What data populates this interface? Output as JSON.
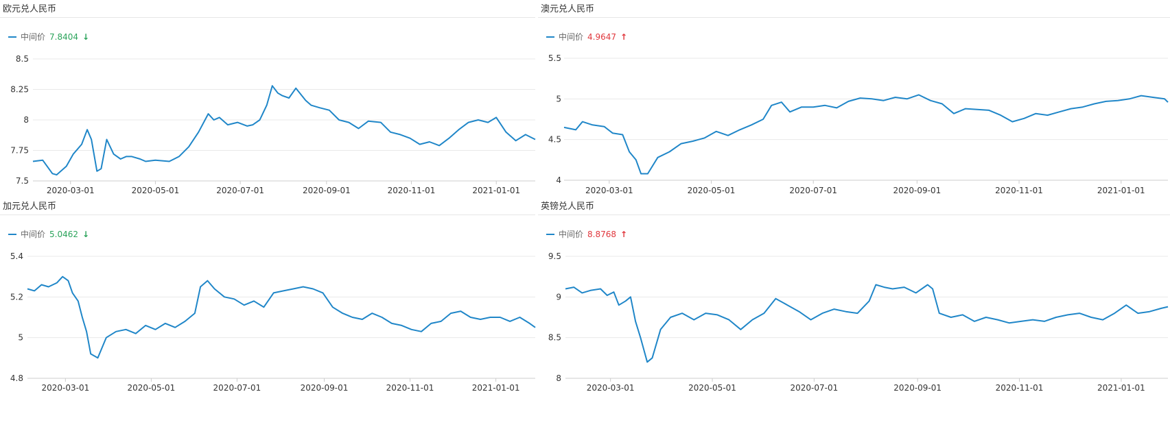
{
  "panels": [
    {
      "title": "欧元兑人民币",
      "legend": {
        "label": "中间价",
        "value": "7.8404",
        "trend": "down"
      },
      "chart_data": {
        "type": "line",
        "title": "欧元兑人民币",
        "series": [
          {
            "name": "中间价",
            "color": "#1f86c8"
          }
        ],
        "ylim": [
          7.5,
          8.5
        ],
        "yticks": [
          "7.5",
          "7.75",
          "8",
          "8.25",
          "8.5"
        ],
        "xticks": [
          "2020-03-01",
          "2020-05-01",
          "2020-07-01",
          "2020-09-01",
          "2020-11-01",
          "2021-01-01"
        ],
        "xrange": [
          "2020-02-03",
          "2021-01-29"
        ],
        "x": [
          "2020-02-03",
          "2020-02-10",
          "2020-02-17",
          "2020-02-20",
          "2020-02-27",
          "2020-03-03",
          "2020-03-09",
          "2020-03-13",
          "2020-03-16",
          "2020-03-20",
          "2020-03-23",
          "2020-03-27",
          "2020-04-01",
          "2020-04-06",
          "2020-04-10",
          "2020-04-14",
          "2020-04-20",
          "2020-04-24",
          "2020-05-01",
          "2020-05-11",
          "2020-05-18",
          "2020-05-25",
          "2020-06-01",
          "2020-06-08",
          "2020-06-12",
          "2020-06-16",
          "2020-06-22",
          "2020-06-29",
          "2020-07-06",
          "2020-07-10",
          "2020-07-15",
          "2020-07-20",
          "2020-07-24",
          "2020-07-28",
          "2020-07-31",
          "2020-08-05",
          "2020-08-10",
          "2020-08-17",
          "2020-08-21",
          "2020-08-27",
          "2020-09-03",
          "2020-09-10",
          "2020-09-17",
          "2020-09-24",
          "2020-10-01",
          "2020-10-10",
          "2020-10-17",
          "2020-10-24",
          "2020-10-31",
          "2020-11-07",
          "2020-11-14",
          "2020-11-21",
          "2020-11-28",
          "2020-12-05",
          "2020-12-12",
          "2020-12-19",
          "2020-12-26",
          "2021-01-01",
          "2021-01-08",
          "2021-01-15",
          "2021-01-22",
          "2021-01-29"
        ],
        "values": [
          7.66,
          7.67,
          7.56,
          7.55,
          7.62,
          7.72,
          7.8,
          7.92,
          7.84,
          7.58,
          7.6,
          7.84,
          7.72,
          7.68,
          7.7,
          7.7,
          7.68,
          7.66,
          7.67,
          7.66,
          7.7,
          7.78,
          7.9,
          8.05,
          8.0,
          8.02,
          7.96,
          7.98,
          7.95,
          7.96,
          8.0,
          8.12,
          8.28,
          8.22,
          8.2,
          8.18,
          8.26,
          8.16,
          8.12,
          8.1,
          8.08,
          8.0,
          7.98,
          7.93,
          7.99,
          7.98,
          7.9,
          7.88,
          7.85,
          7.8,
          7.82,
          7.79,
          7.85,
          7.92,
          7.98,
          8.0,
          7.98,
          8.02,
          7.9,
          7.83,
          7.88,
          7.84
        ]
      }
    },
    {
      "title": "澳元兑人民币",
      "legend": {
        "label": "中间价",
        "value": "4.9647",
        "trend": "up"
      },
      "chart_data": {
        "type": "line",
        "title": "澳元兑人民币",
        "series": [
          {
            "name": "中间价",
            "color": "#1f86c8"
          }
        ],
        "ylim": [
          4,
          5.5
        ],
        "yticks": [
          "4",
          "4.5",
          "5",
          "5.5"
        ],
        "xticks": [
          "2020-03-01",
          "2020-05-01",
          "2020-07-01",
          "2020-09-01",
          "2020-11-01",
          "2021-01-01"
        ],
        "xrange": [
          "2020-02-03",
          "2021-01-29"
        ],
        "x": [
          "2020-02-03",
          "2020-02-10",
          "2020-02-14",
          "2020-02-20",
          "2020-02-27",
          "2020-03-03",
          "2020-03-09",
          "2020-03-13",
          "2020-03-17",
          "2020-03-20",
          "2020-03-24",
          "2020-03-30",
          "2020-04-06",
          "2020-04-13",
          "2020-04-20",
          "2020-04-27",
          "2020-05-04",
          "2020-05-11",
          "2020-05-18",
          "2020-05-25",
          "2020-06-01",
          "2020-06-06",
          "2020-06-12",
          "2020-06-17",
          "2020-06-24",
          "2020-07-01",
          "2020-07-08",
          "2020-07-15",
          "2020-07-22",
          "2020-07-29",
          "2020-08-05",
          "2020-08-12",
          "2020-08-19",
          "2020-08-26",
          "2020-09-02",
          "2020-09-09",
          "2020-09-16",
          "2020-09-23",
          "2020-09-30",
          "2020-10-07",
          "2020-10-14",
          "2020-10-21",
          "2020-10-28",
          "2020-11-04",
          "2020-11-11",
          "2020-11-18",
          "2020-11-25",
          "2020-12-02",
          "2020-12-09",
          "2020-12-16",
          "2020-12-23",
          "2020-12-30",
          "2021-01-06",
          "2021-01-13",
          "2021-01-20",
          "2021-01-27",
          "2021-01-29"
        ],
        "values": [
          4.65,
          4.62,
          4.72,
          4.68,
          4.66,
          4.58,
          4.56,
          4.35,
          4.25,
          4.08,
          4.08,
          4.28,
          4.35,
          4.45,
          4.48,
          4.52,
          4.6,
          4.55,
          4.62,
          4.68,
          4.75,
          4.92,
          4.96,
          4.84,
          4.9,
          4.9,
          4.92,
          4.89,
          4.97,
          5.01,
          5.0,
          4.98,
          5.02,
          5.0,
          5.05,
          4.98,
          4.94,
          4.82,
          4.88,
          4.87,
          4.86,
          4.8,
          4.72,
          4.76,
          4.82,
          4.8,
          4.84,
          4.88,
          4.9,
          4.94,
          4.97,
          4.98,
          5.0,
          5.04,
          5.02,
          5.0,
          4.96
        ]
      }
    },
    {
      "title": "加元兑人民币",
      "legend": {
        "label": "中间价",
        "value": "5.0462",
        "trend": "down"
      },
      "chart_data": {
        "type": "line",
        "title": "加元兑人民币",
        "series": [
          {
            "name": "中间价",
            "color": "#1f86c8"
          }
        ],
        "ylim": [
          4.8,
          5.4
        ],
        "yticks": [
          "4.8",
          "5",
          "5.2",
          "5.4"
        ],
        "xticks": [
          "2020-03-01",
          "2020-05-01",
          "2020-07-01",
          "2020-09-01",
          "2020-11-01",
          "2021-01-01"
        ],
        "xrange": [
          "2020-02-03",
          "2021-01-29"
        ],
        "x": [
          "2020-02-03",
          "2020-02-08",
          "2020-02-13",
          "2020-02-18",
          "2020-02-24",
          "2020-02-28",
          "2020-03-03",
          "2020-03-06",
          "2020-03-10",
          "2020-03-13",
          "2020-03-16",
          "2020-03-19",
          "2020-03-24",
          "2020-03-30",
          "2020-04-06",
          "2020-04-13",
          "2020-04-20",
          "2020-04-27",
          "2020-05-04",
          "2020-05-11",
          "2020-05-18",
          "2020-05-25",
          "2020-06-01",
          "2020-06-05",
          "2020-06-10",
          "2020-06-15",
          "2020-06-22",
          "2020-06-29",
          "2020-07-06",
          "2020-07-13",
          "2020-07-20",
          "2020-07-27",
          "2020-08-03",
          "2020-08-10",
          "2020-08-17",
          "2020-08-24",
          "2020-08-31",
          "2020-09-07",
          "2020-09-14",
          "2020-09-21",
          "2020-09-28",
          "2020-10-05",
          "2020-10-12",
          "2020-10-19",
          "2020-10-26",
          "2020-11-02",
          "2020-11-09",
          "2020-11-16",
          "2020-11-23",
          "2020-11-30",
          "2020-12-07",
          "2020-12-14",
          "2020-12-21",
          "2020-12-28",
          "2021-01-04",
          "2021-01-11",
          "2021-01-18",
          "2021-01-25",
          "2021-01-29"
        ],
        "values": [
          5.24,
          5.23,
          5.26,
          5.25,
          5.27,
          5.3,
          5.28,
          5.22,
          5.18,
          5.1,
          5.03,
          4.92,
          4.9,
          5.0,
          5.03,
          5.04,
          5.02,
          5.06,
          5.04,
          5.07,
          5.05,
          5.08,
          5.12,
          5.25,
          5.28,
          5.24,
          5.2,
          5.19,
          5.16,
          5.18,
          5.15,
          5.22,
          5.23,
          5.24,
          5.25,
          5.24,
          5.22,
          5.15,
          5.12,
          5.1,
          5.09,
          5.12,
          5.1,
          5.07,
          5.06,
          5.04,
          5.03,
          5.07,
          5.08,
          5.12,
          5.13,
          5.1,
          5.09,
          5.1,
          5.1,
          5.08,
          5.1,
          5.07,
          5.05
        ]
      }
    },
    {
      "title": "英镑兑人民币",
      "legend": {
        "label": "中间价",
        "value": "8.8768",
        "trend": "up"
      },
      "chart_data": {
        "type": "line",
        "title": "英镑兑人民币",
        "series": [
          {
            "name": "中间价",
            "color": "#1f86c8"
          }
        ],
        "ylim": [
          8,
          9.5
        ],
        "yticks": [
          "8",
          "8.5",
          "9",
          "9.5"
        ],
        "xticks": [
          "2020-03-01",
          "2020-05-01",
          "2020-07-01",
          "2020-09-01",
          "2020-11-01",
          "2021-01-01"
        ],
        "xrange": [
          "2020-02-03",
          "2021-01-29"
        ],
        "x": [
          "2020-02-03",
          "2020-02-08",
          "2020-02-13",
          "2020-02-18",
          "2020-02-24",
          "2020-02-28",
          "2020-03-03",
          "2020-03-06",
          "2020-03-10",
          "2020-03-13",
          "2020-03-16",
          "2020-03-19",
          "2020-03-23",
          "2020-03-26",
          "2020-03-31",
          "2020-04-06",
          "2020-04-13",
          "2020-04-20",
          "2020-04-27",
          "2020-05-04",
          "2020-05-11",
          "2020-05-18",
          "2020-05-25",
          "2020-06-01",
          "2020-06-08",
          "2020-06-15",
          "2020-06-22",
          "2020-06-29",
          "2020-07-06",
          "2020-07-13",
          "2020-07-20",
          "2020-07-27",
          "2020-08-03",
          "2020-08-07",
          "2020-08-12",
          "2020-08-17",
          "2020-08-24",
          "2020-08-31",
          "2020-09-07",
          "2020-09-10",
          "2020-09-14",
          "2020-09-21",
          "2020-09-28",
          "2020-10-05",
          "2020-10-12",
          "2020-10-19",
          "2020-10-26",
          "2020-11-02",
          "2020-11-09",
          "2020-11-16",
          "2020-11-23",
          "2020-11-30",
          "2020-12-07",
          "2020-12-14",
          "2020-12-21",
          "2020-12-28",
          "2021-01-04",
          "2021-01-11",
          "2021-01-18",
          "2021-01-25",
          "2021-01-29"
        ],
        "values": [
          9.1,
          9.12,
          9.05,
          9.08,
          9.1,
          9.02,
          9.06,
          8.9,
          8.95,
          9.0,
          8.7,
          8.5,
          8.2,
          8.25,
          8.6,
          8.75,
          8.8,
          8.72,
          8.8,
          8.78,
          8.72,
          8.6,
          8.72,
          8.8,
          8.98,
          8.9,
          8.82,
          8.72,
          8.8,
          8.85,
          8.82,
          8.8,
          8.95,
          9.15,
          9.12,
          9.1,
          9.12,
          9.05,
          9.15,
          9.1,
          8.8,
          8.75,
          8.78,
          8.7,
          8.75,
          8.72,
          8.68,
          8.7,
          8.72,
          8.7,
          8.75,
          8.78,
          8.8,
          8.75,
          8.72,
          8.8,
          8.9,
          8.8,
          8.82,
          8.86,
          8.88
        ]
      }
    }
  ]
}
